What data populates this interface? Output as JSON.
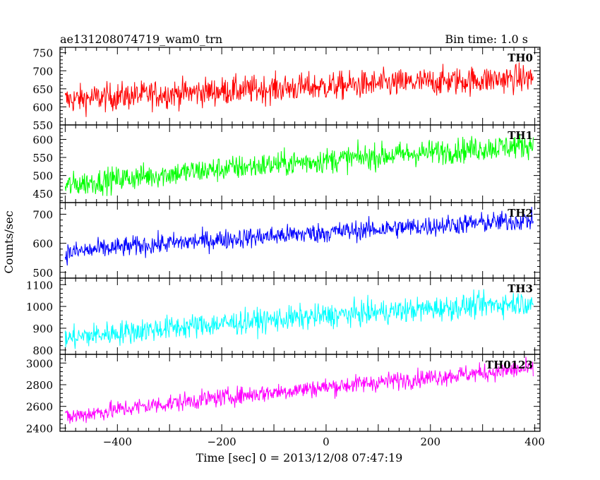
{
  "header": {
    "left_title": "ae131208074719_wam0_trn",
    "right_title": "Bin time: 1.0 s"
  },
  "xlabel": "Time [sec] 0 = 2013/12/08 07:47:19",
  "ylabel": "Counts/sec",
  "chart_data": [
    {
      "type": "line",
      "name": "TH0",
      "color": "#ff0000",
      "xlim": [
        -510,
        410
      ],
      "ylim": [
        550,
        765
      ],
      "yticks": [
        550,
        600,
        650,
        700,
        750
      ],
      "x_range": [
        -500,
        397
      ],
      "trend": {
        "start": 618,
        "end": 680
      },
      "noise": 28
    },
    {
      "type": "line",
      "name": "TH1",
      "color": "#00ff00",
      "xlim": [
        -510,
        410
      ],
      "ylim": [
        425,
        640
      ],
      "yticks": [
        450,
        500,
        550,
        600
      ],
      "x_range": [
        -500,
        397
      ],
      "trend": {
        "start": 470,
        "end": 585
      },
      "noise": 25
    },
    {
      "type": "line",
      "name": "TH2",
      "color": "#0000ff",
      "xlim": [
        -510,
        410
      ],
      "ylim": [
        480,
        740
      ],
      "yticks": [
        500,
        600,
        700
      ],
      "x_range": [
        -500,
        397
      ],
      "trend": {
        "start": 565,
        "end": 680
      },
      "noise": 25
    },
    {
      "type": "line",
      "name": "TH3",
      "color": "#00ffff",
      "xlim": [
        -510,
        410
      ],
      "ylim": [
        780,
        1130
      ],
      "yticks": [
        800,
        900,
        1000,
        1100
      ],
      "x_range": [
        -500,
        397
      ],
      "trend": {
        "start": 850,
        "end": 1020
      },
      "noise": 40
    },
    {
      "type": "line",
      "name": "TH0123",
      "color": "#ff00ff",
      "xlim": [
        -510,
        410
      ],
      "ylim": [
        2370,
        3080
      ],
      "yticks": [
        2400,
        2600,
        2800,
        3000
      ],
      "xticks": [
        -400,
        -200,
        0,
        200,
        400
      ],
      "x_range": [
        -500,
        397
      ],
      "trend": {
        "start": 2490,
        "end": 2950
      },
      "noise": 60
    }
  ]
}
